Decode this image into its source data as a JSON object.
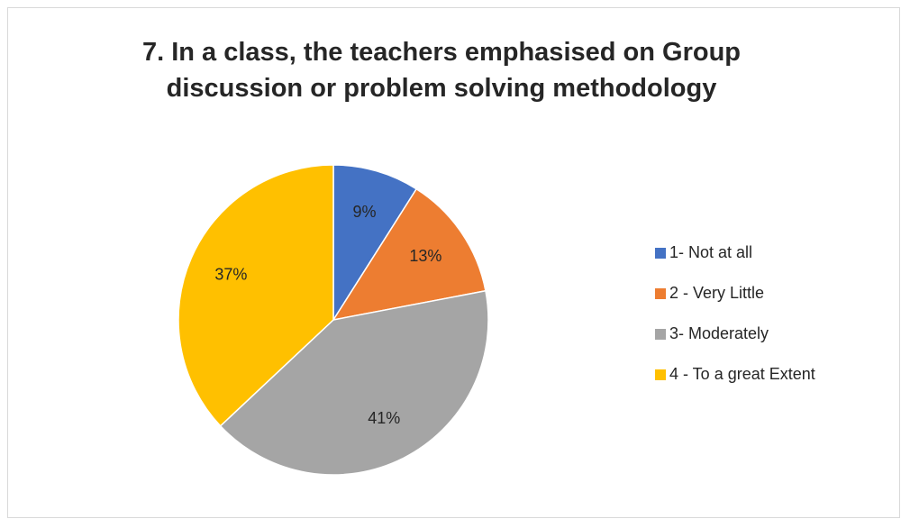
{
  "chart_data": {
    "type": "pie",
    "title": "7. In a class, the teachers emphasised on Group discussion or problem solving methodology",
    "categories": [
      "1- Not at all",
      "2 - Very Little",
      "3- Moderately",
      "4 - To a great Extent"
    ],
    "values": [
      9,
      13,
      41,
      37
    ],
    "value_labels": [
      "9%",
      "13%",
      "41%",
      "37%"
    ],
    "colors": [
      "#4472c4",
      "#ed7d31",
      "#a5a5a5",
      "#ffc000"
    ],
    "legend": "right"
  }
}
